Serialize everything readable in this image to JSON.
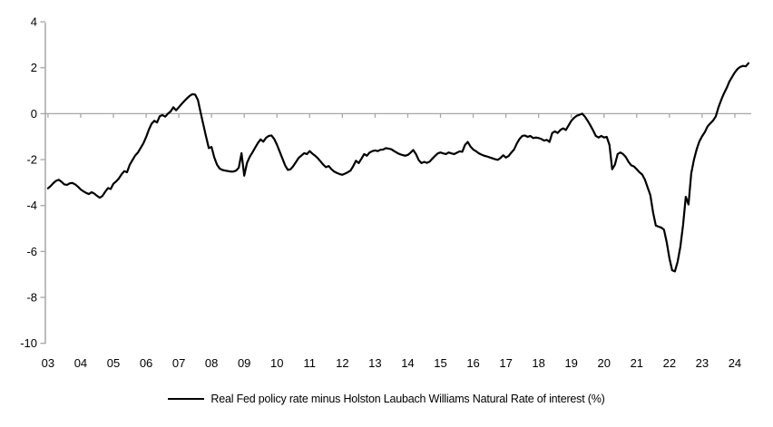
{
  "figure": {
    "legend_label": "Real Fed policy rate minus Holston Laubach Williams Natural Rate of interest (%)"
  },
  "chart_data": {
    "type": "line",
    "title": "",
    "xlabel": "",
    "ylabel": "",
    "legend_position": "bottom-center",
    "grid": "zero-line-only",
    "axis_color": "#A6A6A6",
    "line_color": "#000000",
    "background_color": "#FFFFFF",
    "ylim": [
      -10,
      4
    ],
    "y_ticks": [
      4,
      2,
      0,
      -2,
      -4,
      -6,
      -8,
      -10
    ],
    "x_tick_labels": [
      "03",
      "04",
      "05",
      "06",
      "07",
      "08",
      "09",
      "10",
      "11",
      "12",
      "13",
      "14",
      "15",
      "16",
      "17",
      "18",
      "19",
      "20",
      "21",
      "22",
      "23",
      "24"
    ],
    "x_start_year": 2003,
    "x_end_year": 2024.5,
    "series": [
      {
        "name": "Real Fed policy rate minus Holston Laubach Williams Natural Rate of interest (%)",
        "color": "#000000",
        "frequency": "monthly",
        "start_year": 2003,
        "start_month": 1,
        "values": [
          -3.25,
          -3.15,
          -3.02,
          -2.92,
          -2.88,
          -2.97,
          -3.08,
          -3.1,
          -3.03,
          -3.02,
          -3.08,
          -3.18,
          -3.3,
          -3.38,
          -3.45,
          -3.5,
          -3.42,
          -3.48,
          -3.58,
          -3.66,
          -3.58,
          -3.4,
          -3.24,
          -3.28,
          -3.05,
          -2.95,
          -2.82,
          -2.64,
          -2.5,
          -2.55,
          -2.22,
          -2.02,
          -1.82,
          -1.69,
          -1.49,
          -1.29,
          -1.02,
          -0.7,
          -0.44,
          -0.31,
          -0.38,
          -0.11,
          -0.06,
          -0.13,
          0.0,
          0.1,
          0.28,
          0.15,
          0.28,
          0.42,
          0.55,
          0.67,
          0.78,
          0.85,
          0.83,
          0.6,
          0.05,
          -0.48,
          -1.0,
          -1.5,
          -1.45,
          -1.9,
          -2.22,
          -2.39,
          -2.45,
          -2.48,
          -2.5,
          -2.52,
          -2.52,
          -2.48,
          -2.35,
          -1.72,
          -2.7,
          -2.15,
          -1.88,
          -1.69,
          -1.48,
          -1.28,
          -1.12,
          -1.22,
          -1.05,
          -0.97,
          -0.95,
          -1.1,
          -1.35,
          -1.65,
          -1.95,
          -2.25,
          -2.45,
          -2.42,
          -2.28,
          -2.1,
          -1.92,
          -1.82,
          -1.72,
          -1.76,
          -1.63,
          -1.74,
          -1.83,
          -1.94,
          -2.08,
          -2.22,
          -2.33,
          -2.28,
          -2.42,
          -2.52,
          -2.58,
          -2.63,
          -2.66,
          -2.61,
          -2.55,
          -2.48,
          -2.28,
          -2.05,
          -2.15,
          -1.96,
          -1.76,
          -1.83,
          -1.69,
          -1.63,
          -1.6,
          -1.63,
          -1.57,
          -1.56,
          -1.5,
          -1.52,
          -1.55,
          -1.63,
          -1.7,
          -1.76,
          -1.8,
          -1.83,
          -1.8,
          -1.7,
          -1.58,
          -1.76,
          -2.02,
          -2.15,
          -2.1,
          -2.14,
          -2.09,
          -1.96,
          -1.84,
          -1.73,
          -1.69,
          -1.73,
          -1.76,
          -1.69,
          -1.73,
          -1.76,
          -1.7,
          -1.64,
          -1.66,
          -1.36,
          -1.23,
          -1.43,
          -1.56,
          -1.63,
          -1.72,
          -1.78,
          -1.83,
          -1.86,
          -1.9,
          -1.94,
          -1.98,
          -2.01,
          -1.93,
          -1.81,
          -1.91,
          -1.84,
          -1.69,
          -1.56,
          -1.3,
          -1.1,
          -0.97,
          -0.95,
          -1.01,
          -0.97,
          -1.06,
          -1.04,
          -1.06,
          -1.1,
          -1.17,
          -1.14,
          -1.23,
          -0.84,
          -0.77,
          -0.84,
          -0.71,
          -0.64,
          -0.71,
          -0.51,
          -0.31,
          -0.18,
          -0.09,
          -0.05,
          0.0,
          -0.13,
          -0.31,
          -0.51,
          -0.73,
          -0.97,
          -1.04,
          -0.97,
          -1.04,
          -1.01,
          -1.36,
          -2.42,
          -2.22,
          -1.76,
          -1.69,
          -1.76,
          -1.89,
          -2.1,
          -2.25,
          -2.3,
          -2.42,
          -2.55,
          -2.65,
          -2.87,
          -3.21,
          -3.55,
          -4.3,
          -4.87,
          -4.92,
          -4.96,
          -5.05,
          -5.6,
          -6.3,
          -6.82,
          -6.87,
          -6.45,
          -5.8,
          -4.85,
          -3.62,
          -3.95,
          -2.6,
          -2.0,
          -1.55,
          -1.2,
          -0.98,
          -0.8,
          -0.55,
          -0.42,
          -0.3,
          -0.12,
          0.28,
          0.6,
          0.88,
          1.12,
          1.4,
          1.6,
          1.8,
          1.95,
          2.04,
          2.08,
          2.06,
          2.2
        ]
      }
    ]
  }
}
